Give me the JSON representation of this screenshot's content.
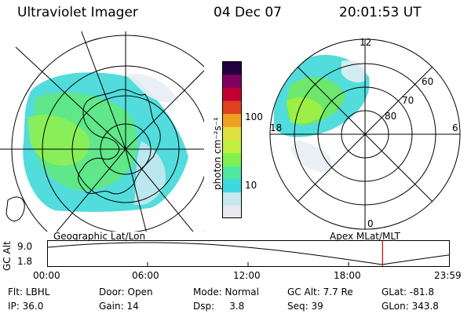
{
  "header": {
    "instrument": "Ultraviolet Imager",
    "date": "04 Dec 07",
    "time": "20:01:53 UT"
  },
  "colorbar": {
    "unit_label": "photon cm⁻²s⁻¹",
    "ticks": [
      "100",
      "10"
    ]
  },
  "left_panel": {
    "label": "Geographic Lat/Lon"
  },
  "right_panel": {
    "label": "Apex  MLat/MLT",
    "lat_labels": [
      "60",
      "70",
      "80"
    ],
    "mlt_labels": {
      "top": "12",
      "left": "18",
      "right": "6",
      "bottom": "0"
    }
  },
  "altitude_plot": {
    "ylabel": "GC Alt",
    "y_ticks": [
      "9.0",
      "1.8"
    ],
    "x_ticks": [
      "00:00",
      "06:00",
      "12:00",
      "18:00",
      "23:59"
    ],
    "current_time_hours": 20.03
  },
  "footer": {
    "row1": {
      "filter": "Flt: LBHL",
      "door": "Door: Open",
      "mode": "Mode: Normal",
      "gc_alt": "GC Alt: 7.7 Re",
      "glat": "GLat: -81.8"
    },
    "row2": {
      "ip": "IP: 36.0",
      "gain": "Gain: 14",
      "dsp": "Dsp:     3.8",
      "seq": "Seq: 39",
      "glon": "GLon: 343.8"
    }
  },
  "colors": {
    "colorbar": [
      "#e8e8f0",
      "#c8e8f0",
      "#40d8e0",
      "#50e8a0",
      "#80f050",
      "#c0f040",
      "#e0e040",
      "#f0a020",
      "#e04020",
      "#c00030",
      "#800060",
      "#200040"
    ],
    "marker": "#d00000"
  }
}
